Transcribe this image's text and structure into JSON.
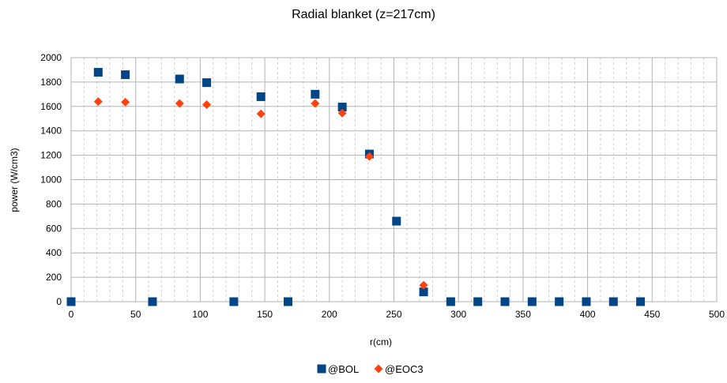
{
  "chart_data": {
    "type": "scatter",
    "title": "Radial blanket (z=217cm)",
    "xlabel": "r(cm)",
    "ylabel": "power (W/cm3)",
    "xlim": [
      0,
      500
    ],
    "ylim": [
      0,
      2000
    ],
    "x_ticks": [
      0,
      50,
      100,
      150,
      200,
      250,
      300,
      350,
      400,
      450,
      500
    ],
    "y_ticks": [
      0,
      200,
      400,
      600,
      800,
      1000,
      1200,
      1400,
      1600,
      1800,
      2000
    ],
    "x_minor_step": 10,
    "grid": true,
    "legend_position": "bottom",
    "series": [
      {
        "name": "@BOL",
        "marker": "square",
        "color": "#004586",
        "x": [
          0,
          21,
          42,
          63,
          84,
          105,
          126,
          147,
          168,
          189,
          210,
          231,
          252,
          273,
          294,
          315,
          336,
          357,
          378,
          399,
          420,
          441
        ],
        "y": [
          0,
          1880,
          1860,
          0,
          1825,
          1795,
          0,
          1680,
          0,
          1700,
          1595,
          1210,
          660,
          80,
          0,
          0,
          0,
          0,
          0,
          0,
          0,
          0
        ]
      },
      {
        "name": "@EOC3",
        "marker": "diamond",
        "color": "#ff420e",
        "x": [
          21,
          42,
          84,
          105,
          147,
          189,
          210,
          231,
          273
        ],
        "y": [
          1640,
          1635,
          1625,
          1615,
          1540,
          1625,
          1545,
          1190,
          135
        ]
      }
    ]
  }
}
